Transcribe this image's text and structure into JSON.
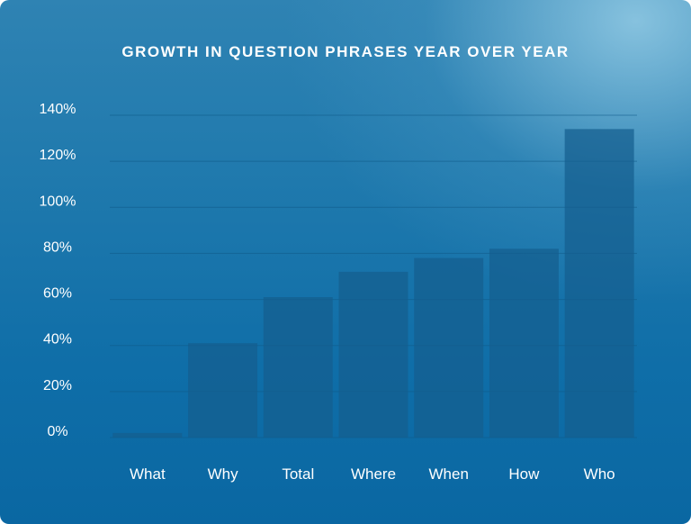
{
  "chart_data": {
    "type": "bar",
    "title": "GROWTH IN QUESTION PHRASES YEAR OVER YEAR",
    "xlabel": "",
    "ylabel": "",
    "categories": [
      "What",
      "Why",
      "Total",
      "Where",
      "When",
      "How",
      "Who"
    ],
    "values": [
      2,
      41,
      61,
      72,
      78,
      82,
      134
    ],
    "ylim": [
      0,
      140
    ],
    "yticks": [
      "0%",
      "20%",
      "40%",
      "60%",
      "80%",
      "100%",
      "120%",
      "140%"
    ],
    "ytick_values": [
      0,
      20,
      40,
      60,
      80,
      100,
      120,
      140
    ],
    "grid": true,
    "legend": "none",
    "colors": {
      "bar": "#155e8f",
      "grid": "#0e5a86",
      "text": "#ffffff"
    }
  }
}
